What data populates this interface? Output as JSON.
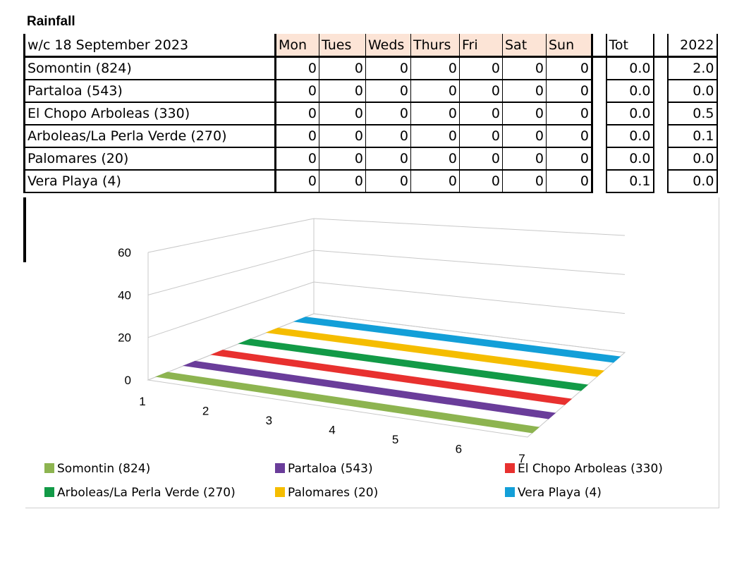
{
  "title": "Rainfall",
  "table": {
    "week_label": "w/c 18 September 2023",
    "days": [
      "Mon",
      "Tues",
      "Weds",
      "Thurs",
      "Fri",
      "Sat",
      "Sun"
    ],
    "total_label": "Tot",
    "prev_year_label": "2022",
    "rows": [
      {
        "name": "Somontin (824)",
        "values": [
          "0",
          "0",
          "0",
          "0",
          "0",
          "0",
          "0"
        ],
        "tot": "0.0",
        "prev": "2.0"
      },
      {
        "name": "Partaloa (543)",
        "values": [
          "0",
          "0",
          "0",
          "0",
          "0",
          "0",
          "0"
        ],
        "tot": "0.0",
        "prev": "0.0"
      },
      {
        "name": "El Chopo Arboleas (330)",
        "values": [
          "0",
          "0",
          "0",
          "0",
          "0",
          "0",
          "0"
        ],
        "tot": "0.0",
        "prev": "0.5"
      },
      {
        "name": "Arboleas/La Perla Verde (270)",
        "values": [
          "0",
          "0",
          "0",
          "0",
          "0",
          "0",
          "0"
        ],
        "tot": "0.0",
        "prev": "0.1"
      },
      {
        "name": "Palomares (20)",
        "values": [
          "0",
          "0",
          "0",
          "0",
          "0",
          "0",
          "0"
        ],
        "tot": "0.0",
        "prev": "0.0"
      },
      {
        "name": "Vera Playa (4)",
        "values": [
          "0",
          "0",
          "0",
          "0",
          "0",
          "0",
          "0"
        ],
        "tot": "0.1",
        "prev": "0.0"
      }
    ]
  },
  "chart_data": {
    "type": "bar",
    "style": "3d",
    "categories": [
      "1",
      "2",
      "3",
      "4",
      "5",
      "6",
      "7"
    ],
    "ylim": [
      0,
      60
    ],
    "yticks": [
      "0",
      "20",
      "40",
      "60"
    ],
    "grid": true,
    "legend_position": "bottom",
    "series": [
      {
        "name": "Somontin (824)",
        "color": "#8db450",
        "values": [
          0,
          0,
          0,
          0,
          0,
          0,
          0
        ]
      },
      {
        "name": "Partaloa (543)",
        "color": "#6a3d9a",
        "values": [
          0,
          0,
          0,
          0,
          0,
          0,
          0
        ]
      },
      {
        "name": "El Chopo Arboleas (330)",
        "color": "#e8312f",
        "values": [
          0,
          0,
          0,
          0,
          0,
          0,
          0
        ]
      },
      {
        "name": "Arboleas/La Perla Verde (270)",
        "color": "#129a47",
        "values": [
          0,
          0,
          0,
          0,
          0,
          0,
          0
        ]
      },
      {
        "name": "Palomares (20)",
        "color": "#f5bd00",
        "values": [
          0,
          0,
          0,
          0,
          0,
          0,
          0
        ]
      },
      {
        "name": "Vera Playa (4)",
        "color": "#139fd8",
        "values": [
          0,
          0,
          0,
          0,
          0,
          0,
          0
        ]
      }
    ]
  }
}
